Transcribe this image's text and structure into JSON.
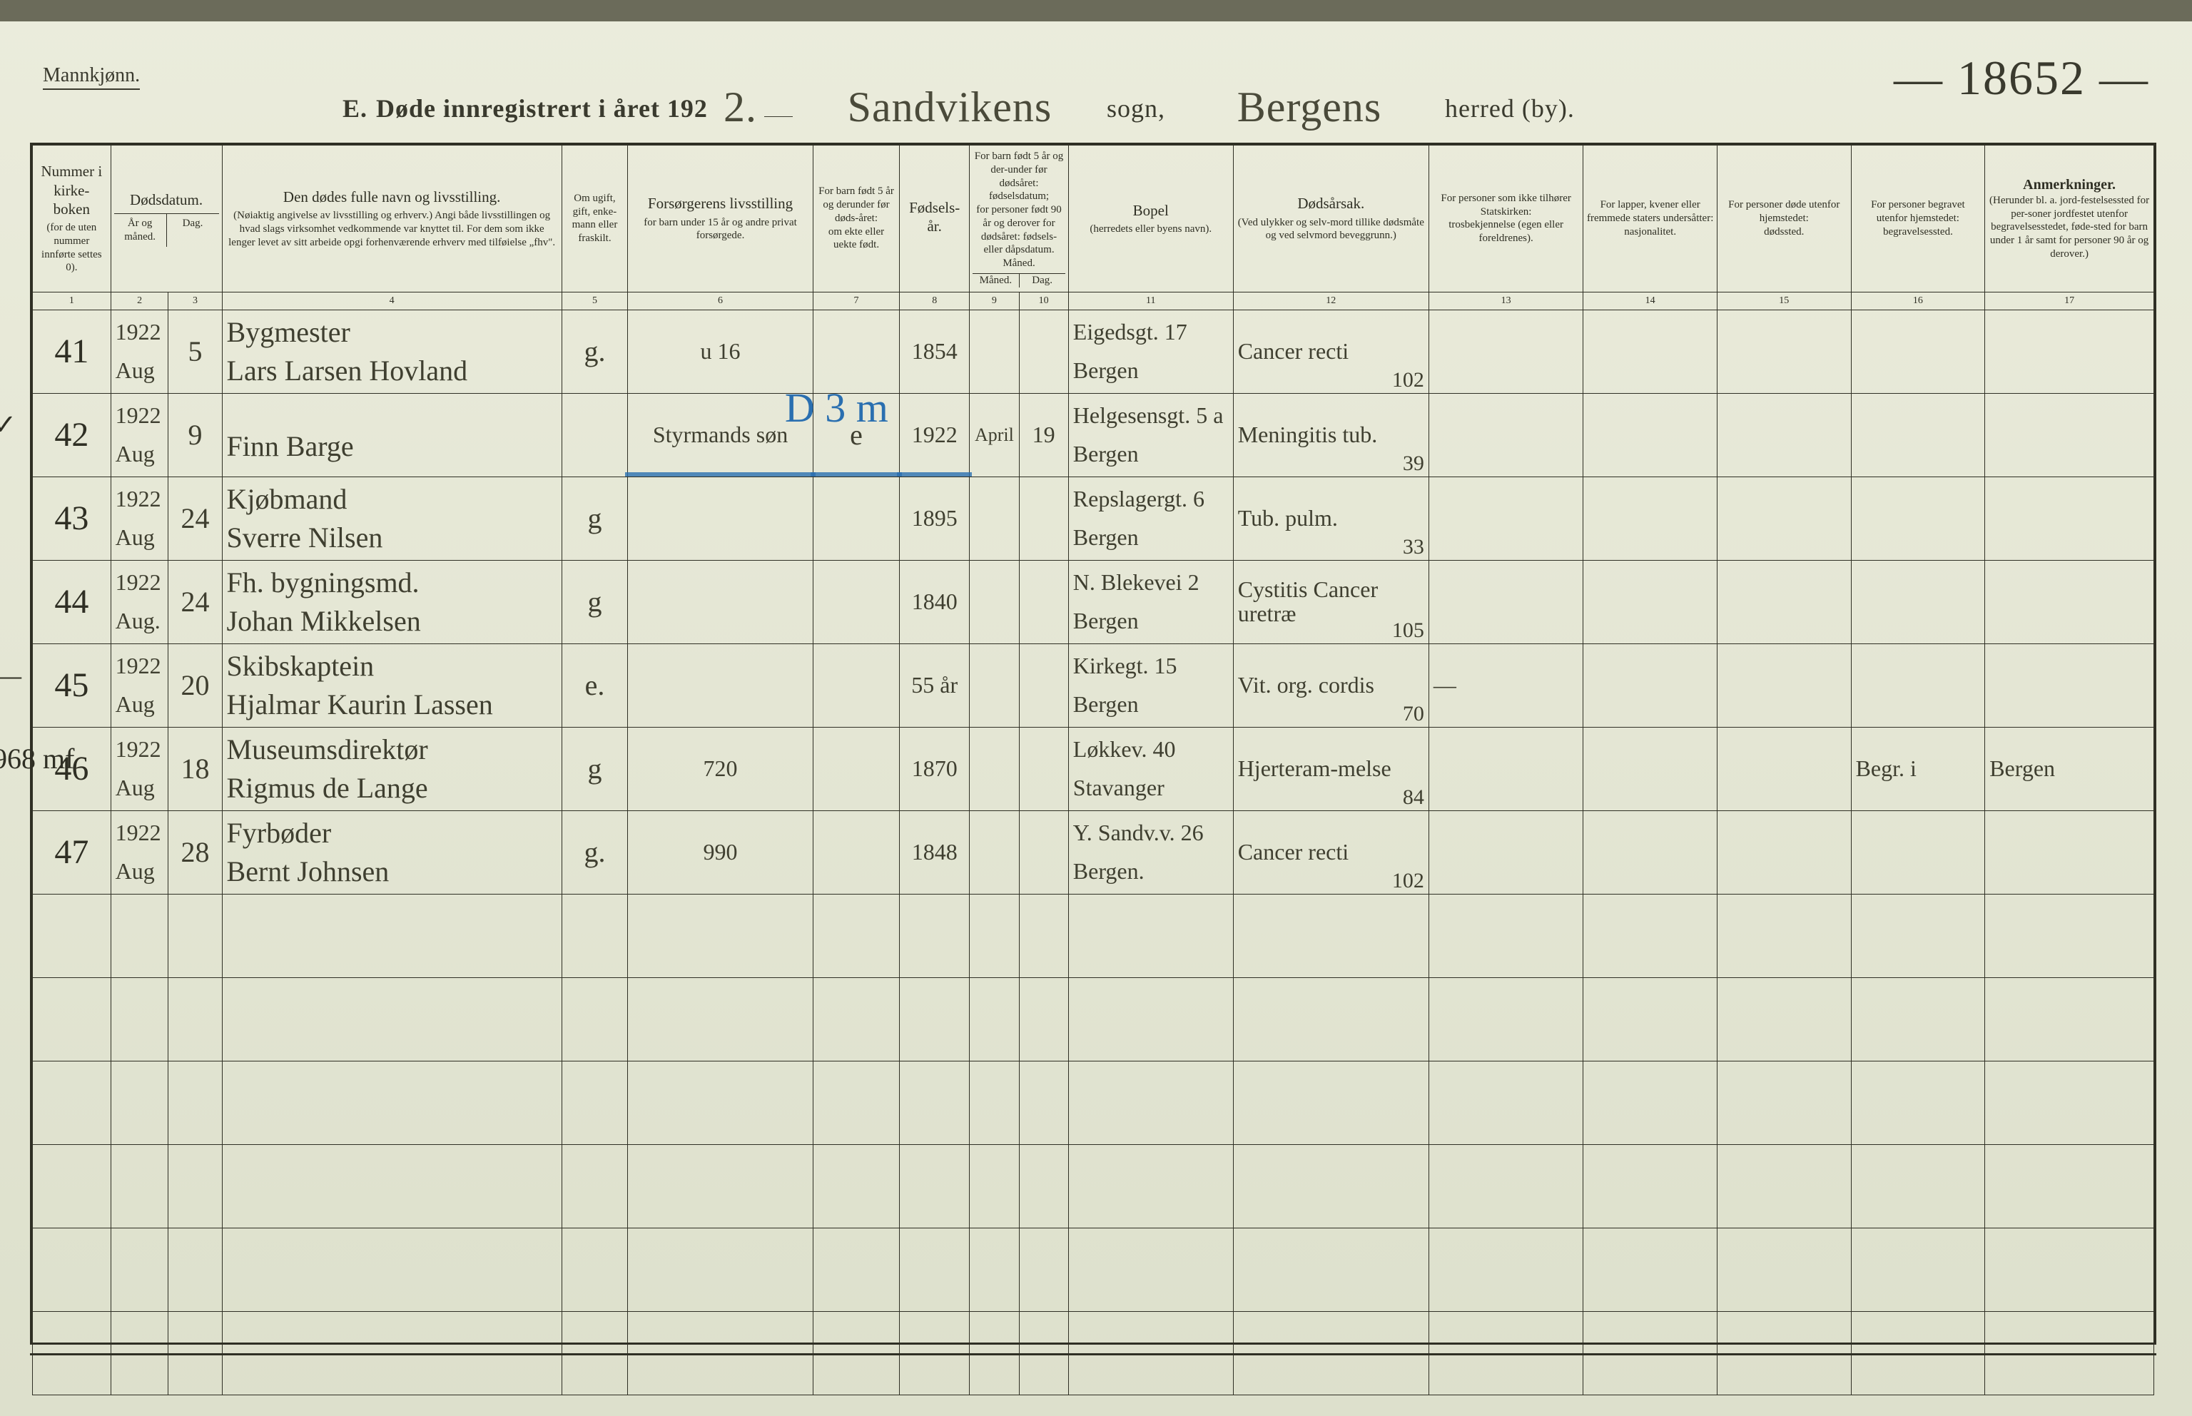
{
  "meta": {
    "gender_label": "Mannkjønn.",
    "form_number": "— 18652 —",
    "title_prefix": "E.",
    "title_main": "Døde innregistrert i året 192",
    "year_handwritten": "2.",
    "parish_handwritten": "Sandvikens",
    "parish_label": "sogn,",
    "district_handwritten": "Bergens",
    "district_label": "herred (by)."
  },
  "style": {
    "page_bg": "#e4e6d4",
    "ink": "#2f2f24",
    "blue_pencil": "#2a6fb0",
    "script_font": "Brush Script MT"
  },
  "columns": [
    {
      "n": "1",
      "title": "Nummer i kirke-boken",
      "sub": "(for de uten nummer innførte settes 0)."
    },
    {
      "n": "2",
      "title": "Dødsdatum.",
      "sub": "År og måned."
    },
    {
      "n": "3",
      "title": "",
      "sub": "Dag."
    },
    {
      "n": "4",
      "title": "Den dødes fulle navn og livsstilling.",
      "sub": "(Nøiaktig angivelse av livsstilling og erhverv.) Angi både livsstillingen og hvad slags virksomhet vedkommende var knyttet til. For dem som ikke lenger levet av sitt arbeide opgi forhenværende erhverv med tilføielse „fhv\"."
    },
    {
      "n": "5",
      "title": "Om ugift, gift, enke-mann eller fraskilt.",
      "sub": ""
    },
    {
      "n": "6",
      "title": "Forsørgerens livsstilling",
      "sub": "for barn under 15 år og andre privat forsørgede."
    },
    {
      "n": "7",
      "title": "For barn født 5 år og derunder før døds-året:",
      "sub": "om ekte eller uekte født."
    },
    {
      "n": "8",
      "title": "Fødsels-år.",
      "sub": ""
    },
    {
      "n": "9",
      "title": "For barn født 5 år og der-under før dødsåret: fødselsdatum;",
      "sub": "for personer født 90 år og derover for dødsåret: fødsels- eller dåpsdatum. Måned."
    },
    {
      "n": "10",
      "title": "",
      "sub": "Dag."
    },
    {
      "n": "11",
      "title": "Bopel",
      "sub": "(herredets eller byens navn)."
    },
    {
      "n": "12",
      "title": "Dødsårsak.",
      "sub": "(Ved ulykker og selv-mord tillike dødsmåte og ved selvmord beveggrunn.)"
    },
    {
      "n": "13",
      "title": "For personer som ikke tilhører Statskirken:",
      "sub": "trosbekjennelse (egen eller foreldrenes)."
    },
    {
      "n": "14",
      "title": "For lapper, kvener eller fremmede staters undersåtter:",
      "sub": "nasjonalitet."
    },
    {
      "n": "15",
      "title": "For personer døde utenfor hjemstedet:",
      "sub": "dødssted."
    },
    {
      "n": "16",
      "title": "For personer begravet utenfor hjemstedet:",
      "sub": "begravelsessted."
    },
    {
      "n": "17",
      "title": "Anmerkninger.",
      "sub": "(Herunder bl. a. jord-festelsessted for per-soner jordfestet utenfor begravelsesstedet, føde-sted for barn under 1 år samt for personer 90 år og derover.)"
    }
  ],
  "rows": [
    {
      "no": "41",
      "year": "1922",
      "month": "Aug",
      "day": "5",
      "name_top": "Bygmester",
      "name_bot": "Lars Larsen Hovland",
      "civil": "g.",
      "support": "u 16",
      "legit": "",
      "birth": "1854",
      "bm": "",
      "bd": "",
      "residence_top": "Eigedsgt. 17",
      "residence_bot": "Bergen",
      "cause": "Cancer recti",
      "cause_code": "102",
      "c13": "",
      "c14": "",
      "c15": "",
      "c16": "",
      "c17": "",
      "margin": "",
      "blue": ""
    },
    {
      "no": "42",
      "year": "1922",
      "month": "Aug",
      "day": "9",
      "name_top": "",
      "name_bot": "Finn Barge",
      "civil": "",
      "support": "Styrmands søn",
      "legit": "e",
      "birth": "1922",
      "bm": "April",
      "bd": "19",
      "residence_top": "Helgesensgt. 5 a",
      "residence_bot": "Bergen",
      "cause": "Meningitis tub.",
      "cause_code": "39",
      "c13": "",
      "c14": "",
      "c15": "",
      "c16": "",
      "c17": "",
      "margin": "✓",
      "blue": "D 3 m",
      "blue_underline": true
    },
    {
      "no": "43",
      "year": "1922",
      "month": "Aug",
      "day": "24",
      "name_top": "Kjøbmand",
      "name_bot": "Sverre Nilsen",
      "civil": "g",
      "support": "",
      "legit": "",
      "birth": "1895",
      "bm": "",
      "bd": "",
      "residence_top": "Repslagergt. 6",
      "residence_bot": "Bergen",
      "cause": "Tub. pulm.",
      "cause_code": "33",
      "c13": "",
      "c14": "",
      "c15": "",
      "c16": "",
      "c17": "",
      "margin": "",
      "blue": ""
    },
    {
      "no": "44",
      "year": "1922",
      "month": "Aug.",
      "day": "24",
      "name_top": "Fh. bygningsmd.",
      "name_bot": "Johan Mikkelsen",
      "civil": "g",
      "support": "",
      "legit": "",
      "birth": "1840",
      "bm": "",
      "bd": "",
      "residence_top": "N. Blekevei 2",
      "residence_bot": "Bergen",
      "cause": "Cystitis Cancer uretræ",
      "cause_code": "105",
      "c13": "",
      "c14": "",
      "c15": "",
      "c16": "",
      "c17": "",
      "margin": "",
      "blue": ""
    },
    {
      "no": "45",
      "year": "1922",
      "month": "Aug",
      "day": "20",
      "name_top": "Skibskaptein",
      "name_bot": "Hjalmar Kaurin Lassen",
      "civil": "e.",
      "support": "",
      "legit": "",
      "birth": "55 år",
      "bm": "",
      "bd": "",
      "residence_top": "Kirkegt. 15",
      "residence_bot": "Bergen",
      "cause": "Vit. org. cordis",
      "cause_code": "70",
      "c13": "—",
      "c14": "",
      "c15": "",
      "c16": "",
      "c17": "",
      "margin": "—",
      "blue": ""
    },
    {
      "no": "46",
      "year": "1922",
      "month": "Aug",
      "day": "18",
      "name_top": "Museumsdirektør",
      "name_bot": "Rigmus de Lange",
      "civil": "g",
      "support": "720",
      "legit": "",
      "birth": "1870",
      "bm": "",
      "bd": "",
      "residence_top": "Løkkev. 40",
      "residence_bot": "Stavanger",
      "cause": "Hjerteram-melse",
      "cause_code": "84",
      "c13": "",
      "c14": "",
      "c15": "",
      "c16": "Begr. i",
      "c17": "Bergen",
      "margin": "968 mf",
      "blue": ""
    },
    {
      "no": "47",
      "year": "1922",
      "month": "Aug",
      "day": "28",
      "name_top": "Fyrbøder",
      "name_bot": "Bernt Johnsen",
      "civil": "g.",
      "support": "990",
      "legit": "",
      "birth": "1848",
      "bm": "",
      "bd": "",
      "residence_top": "Y. Sandv.v. 26",
      "residence_bot": "Bergen.",
      "cause": "Cancer recti",
      "cause_code": "102",
      "c13": "",
      "c14": "",
      "c15": "",
      "c16": "",
      "c17": "",
      "margin": "",
      "blue": ""
    }
  ],
  "blank_rows": 6
}
